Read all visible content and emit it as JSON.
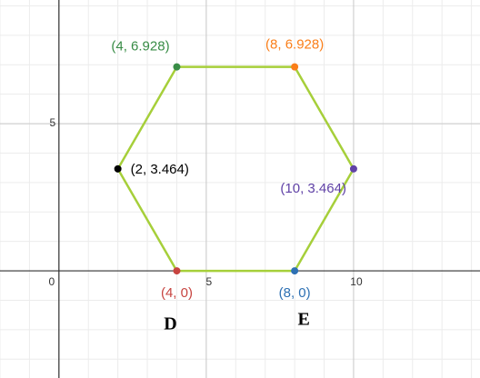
{
  "chart_data": {
    "type": "scatter",
    "x": [
      4,
      8,
      10,
      8,
      4,
      2
    ],
    "y": [
      0,
      0,
      3.464,
      6.928,
      6.928,
      3.464
    ],
    "point_labels": [
      "(4, 0)",
      "(8, 0)",
      "(10, 3.464)",
      "(8, 6.928)",
      "(4, 6.928)",
      "(2, 3.464)"
    ],
    "colors": [
      "#c74440",
      "#2d70b3",
      "#6042a6",
      "#fa7e19",
      "#388c46",
      "#000000"
    ],
    "polygon": true,
    "polygon_color": "#a6cf3a",
    "xlim": [
      -2,
      14.29
    ],
    "ylim": [
      -3.64,
      9.2
    ],
    "xticks": [
      0,
      5,
      10
    ],
    "yticks": [
      5
    ],
    "grid": true,
    "minor_grid_step": 1,
    "annotations": [
      "D",
      "E"
    ]
  }
}
